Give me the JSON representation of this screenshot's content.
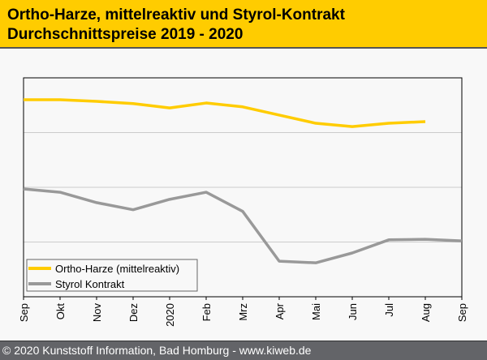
{
  "header": {
    "title_line1": "Ortho-Harze, mittelreaktiv und Styrol-Kontrakt",
    "title_line2": "Durchschnittspreise 2019 - 2020"
  },
  "footer": {
    "text": "© 2020 Kunststoff Information, Bad Homburg - www.kiweb.de"
  },
  "chart_data": {
    "type": "line",
    "title": "Ortho-Harze, mittelreaktiv und Styrol-Kontrakt Durchschnittspreise 2019 - 2020",
    "xlabel": "",
    "ylabel": "",
    "categories": [
      "Sep",
      "Okt",
      "Nov",
      "Dez",
      "2020",
      "Feb",
      "Mrz",
      "Apr",
      "Mai",
      "Jun",
      "Jul",
      "Aug",
      "Sep"
    ],
    "ylim": [
      0,
      400
    ],
    "y_grid": [
      100,
      200,
      300
    ],
    "y_units_note": "relative index (no y-axis labels shown)",
    "legend_position": "bottom-left",
    "series": [
      {
        "name": "Ortho-Harze (mittelreaktiv)",
        "color": "#ffcc00",
        "values": [
          360,
          360,
          357,
          353,
          345,
          354,
          347,
          332,
          317,
          311,
          317,
          320,
          null
        ]
      },
      {
        "name": "Styrol Kontrakt",
        "color": "#999999",
        "values": [
          197,
          191,
          172,
          159,
          178,
          191,
          156,
          65,
          62,
          80,
          104,
          105,
          102
        ]
      }
    ]
  }
}
